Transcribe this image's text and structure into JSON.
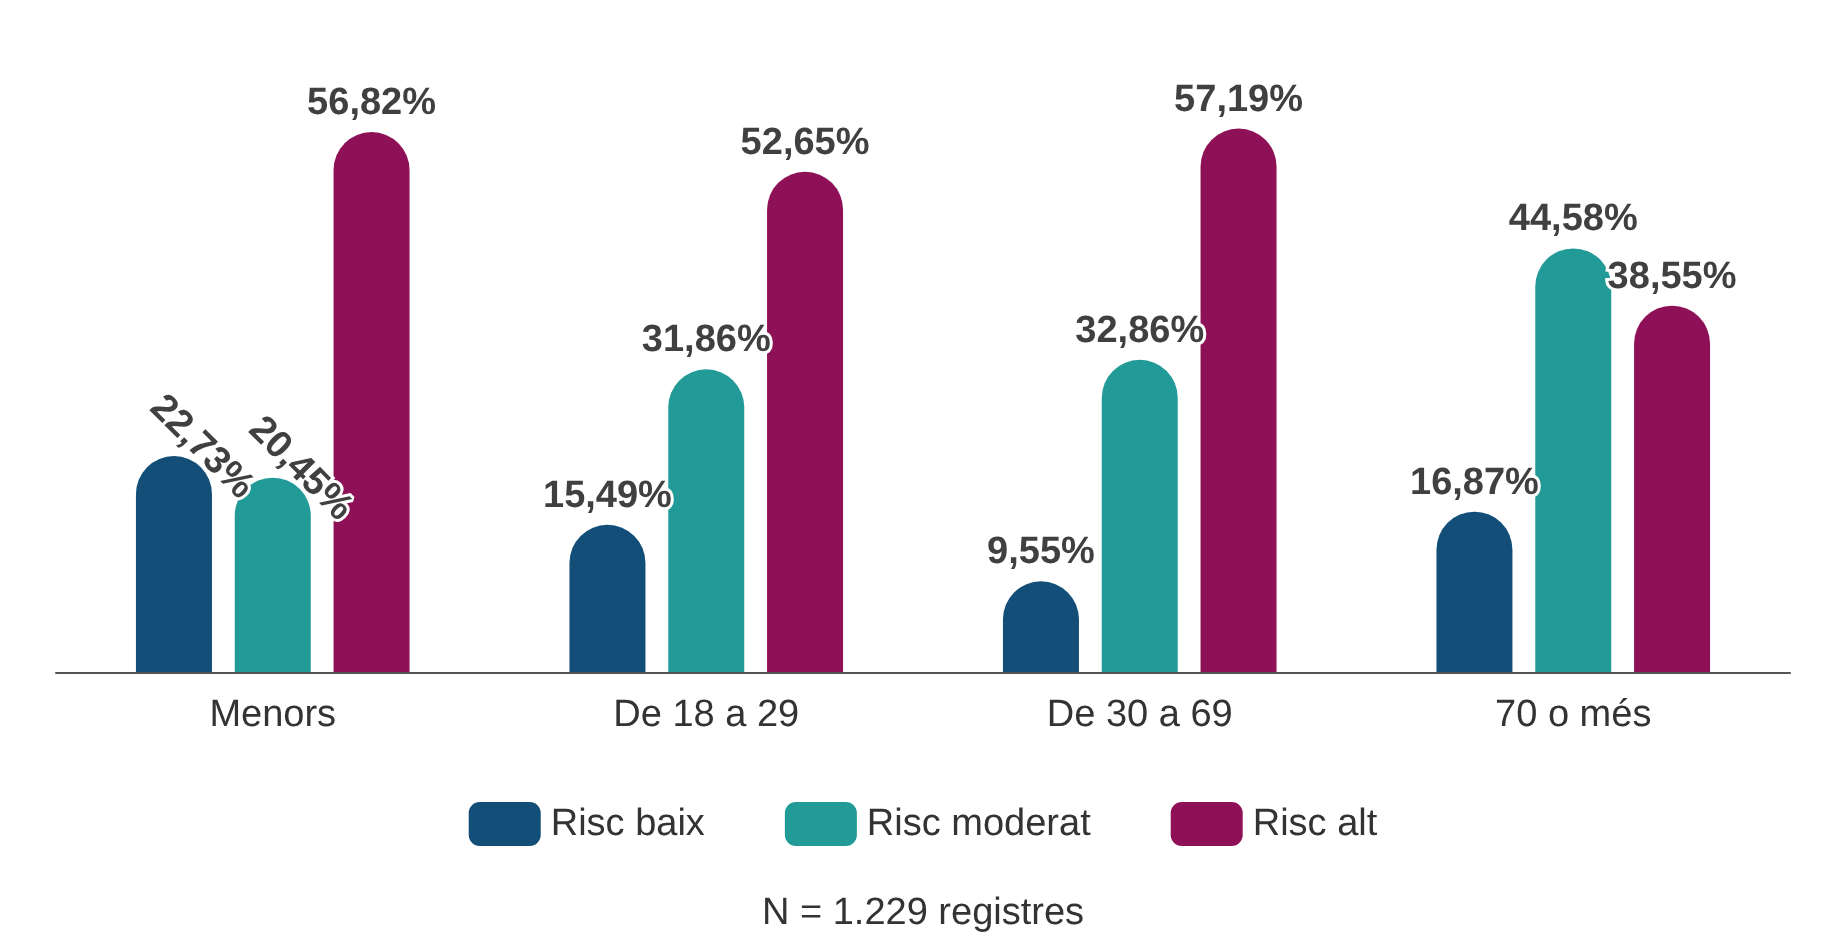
{
  "chart_data": {
    "type": "bar",
    "categories": [
      "Menors",
      "De 18 a 29",
      "De 30 a 69",
      "70 o més"
    ],
    "series": [
      {
        "name": "Risc baix",
        "color": "#124e78",
        "values": [
          22.73,
          15.49,
          9.55,
          16.87
        ],
        "value_labels": [
          "22,73%",
          "15,49%",
          "9,55%",
          "16,87%"
        ]
      },
      {
        "name": "Risc moderat",
        "color": "#229b98",
        "values": [
          20.45,
          31.86,
          32.86,
          44.58
        ],
        "value_labels": [
          "20,45%",
          "31,86%",
          "32,86%",
          "44,58%"
        ]
      },
      {
        "name": "Risc alt",
        "color": "#8e1157",
        "values": [
          56.82,
          52.65,
          57.19,
          38.55
        ],
        "value_labels": [
          "56,82%",
          "52,65%",
          "57,19%",
          "38,55%"
        ]
      }
    ],
    "legend": "bottom",
    "grid": false,
    "annotations": [
      "N = 1.229 registres"
    ]
  }
}
